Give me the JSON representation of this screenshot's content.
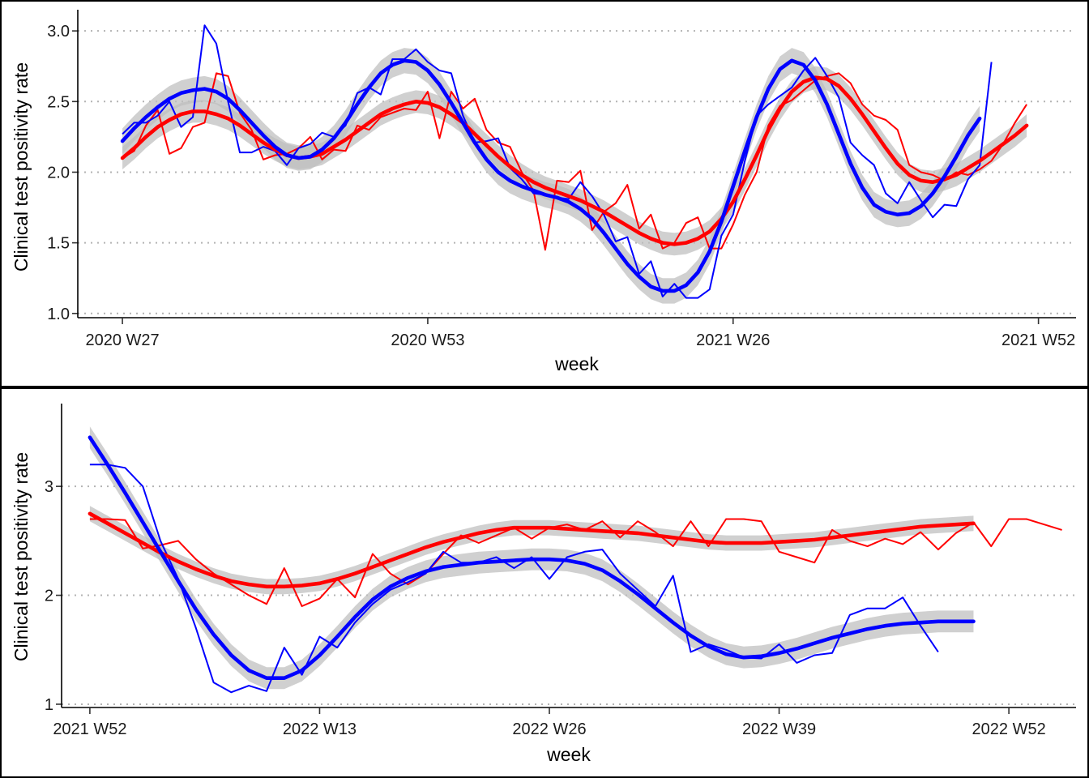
{
  "colors": {
    "series_a": "#ff0000",
    "series_b": "#0000ff",
    "band": "#bebebe",
    "grid": "#b3b3b3"
  },
  "chart_data": [
    {
      "type": "line",
      "title": "",
      "xlabel": "week",
      "ylabel": "Clinical test positivity rate",
      "x_ticks": [
        {
          "week": 0,
          "label": "2020 W27"
        },
        {
          "week": 26,
          "label": "2020 W53"
        },
        {
          "week": 52,
          "label": "2021 W26"
        },
        {
          "week": 78,
          "label": "2021 W52"
        }
      ],
      "y_ticks": [
        1.0,
        1.5,
        2.0,
        2.5,
        3.0
      ],
      "y_tick_labels": [
        "1.0",
        "1.5",
        "2.0",
        "2.5",
        "3.0"
      ],
      "xlim": [
        -3.8,
        81.2
      ],
      "ylim": [
        0.97,
        3.15
      ],
      "grid": "horizontal dotted",
      "legend": "none",
      "series": [
        {
          "color": "#ff0000",
          "observed": [
            2.1,
            2.15,
            2.33,
            2.44,
            2.13,
            2.17,
            2.32,
            2.35,
            2.7,
            2.68,
            2.42,
            2.3,
            2.09,
            2.12,
            2.13,
            2.17,
            2.25,
            2.09,
            2.16,
            2.15,
            2.33,
            2.3,
            2.39,
            2.42,
            2.45,
            2.44,
            2.57,
            2.24,
            2.57,
            2.45,
            2.52,
            2.3,
            2.21,
            2.18,
            2.0,
            1.87,
            1.45,
            1.94,
            1.93,
            2.01,
            1.59,
            1.72,
            1.78,
            1.91,
            1.6,
            1.7,
            1.46,
            1.5,
            1.64,
            1.68,
            1.46,
            1.46,
            1.63,
            1.84,
            2.0,
            2.33,
            2.47,
            2.51,
            2.58,
            2.65,
            2.68,
            2.7,
            2.63,
            2.48,
            2.4,
            2.37,
            2.3,
            2.05,
            2.0,
            1.98,
            1.94,
            2.0,
            1.98,
            2.02,
            2.08,
            2.2,
            2.35,
            2.48
          ],
          "smooth": [
            2.1,
            2.17,
            2.25,
            2.32,
            2.37,
            2.41,
            2.43,
            2.43,
            2.41,
            2.38,
            2.33,
            2.27,
            2.21,
            2.16,
            2.12,
            2.1,
            2.11,
            2.13,
            2.18,
            2.23,
            2.29,
            2.35,
            2.41,
            2.45,
            2.48,
            2.5,
            2.49,
            2.46,
            2.41,
            2.35,
            2.27,
            2.19,
            2.11,
            2.04,
            1.98,
            1.93,
            1.89,
            1.86,
            1.83,
            1.8,
            1.76,
            1.72,
            1.67,
            1.62,
            1.57,
            1.53,
            1.5,
            1.49,
            1.5,
            1.53,
            1.58,
            1.67,
            1.79,
            1.95,
            2.12,
            2.3,
            2.45,
            2.57,
            2.64,
            2.67,
            2.66,
            2.61,
            2.52,
            2.41,
            2.29,
            2.17,
            2.06,
            1.98,
            1.94,
            1.93,
            1.95,
            1.98,
            2.03,
            2.08,
            2.14,
            2.2,
            2.26,
            2.33
          ],
          "band_halfwidth": 0.08
        },
        {
          "color": "#0000ff",
          "observed": [
            2.27,
            2.35,
            2.35,
            2.4,
            2.5,
            2.32,
            2.39,
            3.04,
            2.91,
            2.5,
            2.14,
            2.14,
            2.18,
            2.15,
            2.05,
            2.17,
            2.2,
            2.28,
            2.25,
            2.33,
            2.56,
            2.6,
            2.55,
            2.8,
            2.8,
            2.87,
            2.78,
            2.72,
            2.7,
            2.4,
            2.21,
            2.22,
            2.24,
            2.03,
            1.95,
            1.85,
            1.84,
            1.82,
            1.81,
            1.93,
            1.83,
            1.7,
            1.51,
            1.54,
            1.28,
            1.37,
            1.12,
            1.21,
            1.11,
            1.11,
            1.17,
            1.55,
            1.7,
            2.08,
            2.4,
            2.48,
            2.54,
            2.6,
            2.72,
            2.81,
            2.68,
            2.53,
            2.21,
            2.12,
            2.05,
            1.85,
            1.78,
            1.93,
            1.8,
            1.68,
            1.77,
            1.76,
            1.95,
            2.05,
            2.78
          ],
          "smooth": [
            2.22,
            2.31,
            2.39,
            2.46,
            2.52,
            2.56,
            2.58,
            2.59,
            2.57,
            2.52,
            2.44,
            2.35,
            2.26,
            2.18,
            2.12,
            2.1,
            2.11,
            2.16,
            2.24,
            2.35,
            2.48,
            2.6,
            2.7,
            2.76,
            2.79,
            2.78,
            2.72,
            2.62,
            2.49,
            2.35,
            2.21,
            2.09,
            2.0,
            1.94,
            1.9,
            1.87,
            1.84,
            1.82,
            1.79,
            1.74,
            1.67,
            1.57,
            1.46,
            1.35,
            1.26,
            1.19,
            1.16,
            1.16,
            1.2,
            1.29,
            1.44,
            1.65,
            1.9,
            2.15,
            2.39,
            2.59,
            2.73,
            2.79,
            2.76,
            2.65,
            2.48,
            2.27,
            2.06,
            1.89,
            1.77,
            1.72,
            1.7,
            1.71,
            1.76,
            1.85,
            1.97,
            2.11,
            2.26,
            2.38
          ],
          "band_halfwidth": 0.09
        }
      ]
    },
    {
      "type": "line",
      "title": "",
      "xlabel": "week",
      "ylabel": "Clinical test positivity rate",
      "x_ticks": [
        {
          "week": 0,
          "label": "2021 W52"
        },
        {
          "week": 13,
          "label": "2022 W13"
        },
        {
          "week": 26,
          "label": "2022 W26"
        },
        {
          "week": 39,
          "label": "2022 W39"
        },
        {
          "week": 52,
          "label": "2022 W52"
        }
      ],
      "y_ticks": [
        1,
        2,
        3
      ],
      "y_tick_labels": [
        "1",
        "2",
        "3"
      ],
      "xlim": [
        -1.6,
        55.8
      ],
      "ylim": [
        0.97,
        3.76
      ],
      "grid": "horizontal dotted",
      "legend": "none",
      "series": [
        {
          "color": "#ff0000",
          "observed": [
            2.7,
            2.7,
            2.69,
            2.43,
            2.46,
            2.5,
            2.33,
            2.2,
            2.1,
            2.0,
            1.92,
            2.25,
            1.9,
            1.97,
            2.15,
            1.98,
            2.38,
            2.2,
            2.1,
            2.2,
            2.38,
            2.55,
            2.48,
            2.55,
            2.62,
            2.52,
            2.62,
            2.65,
            2.6,
            2.68,
            2.53,
            2.68,
            2.58,
            2.45,
            2.68,
            2.45,
            2.7,
            2.7,
            2.68,
            2.4,
            2.35,
            2.3,
            2.6,
            2.5,
            2.45,
            2.52,
            2.47,
            2.58,
            2.42,
            2.57,
            2.67,
            2.45,
            2.7,
            2.7,
            2.65,
            2.6
          ],
          "smooth": [
            2.75,
            2.66,
            2.57,
            2.48,
            2.39,
            2.31,
            2.24,
            2.18,
            2.13,
            2.1,
            2.08,
            2.08,
            2.09,
            2.11,
            2.15,
            2.2,
            2.26,
            2.32,
            2.38,
            2.44,
            2.49,
            2.53,
            2.57,
            2.6,
            2.62,
            2.62,
            2.62,
            2.61,
            2.6,
            2.59,
            2.58,
            2.57,
            2.55,
            2.53,
            2.51,
            2.49,
            2.48,
            2.48,
            2.48,
            2.49,
            2.5,
            2.51,
            2.53,
            2.55,
            2.57,
            2.59,
            2.61,
            2.63,
            2.64,
            2.65,
            2.66
          ],
          "band_halfwidth": 0.07
        },
        {
          "color": "#0000ff",
          "observed": [
            3.2,
            3.2,
            3.17,
            3.0,
            2.5,
            2.15,
            1.7,
            1.2,
            1.11,
            1.17,
            1.12,
            1.52,
            1.27,
            1.62,
            1.52,
            1.75,
            1.92,
            2.05,
            2.12,
            2.2,
            2.4,
            2.3,
            2.3,
            2.35,
            2.25,
            2.35,
            2.15,
            2.35,
            2.4,
            2.42,
            2.2,
            2.05,
            1.9,
            2.18,
            1.48,
            1.55,
            1.5,
            1.43,
            1.42,
            1.55,
            1.38,
            1.45,
            1.47,
            1.82,
            1.88,
            1.88,
            1.98,
            1.72,
            1.48
          ],
          "smooth": [
            3.45,
            3.2,
            2.94,
            2.67,
            2.4,
            2.13,
            1.87,
            1.64,
            1.45,
            1.31,
            1.24,
            1.24,
            1.31,
            1.45,
            1.62,
            1.8,
            1.96,
            2.08,
            2.16,
            2.22,
            2.26,
            2.28,
            2.3,
            2.31,
            2.32,
            2.33,
            2.33,
            2.32,
            2.29,
            2.23,
            2.13,
            2.01,
            1.88,
            1.75,
            1.63,
            1.53,
            1.46,
            1.43,
            1.44,
            1.47,
            1.51,
            1.56,
            1.61,
            1.65,
            1.69,
            1.72,
            1.74,
            1.75,
            1.76,
            1.76,
            1.76
          ],
          "band_halfwidth": 0.1
        }
      ]
    }
  ]
}
